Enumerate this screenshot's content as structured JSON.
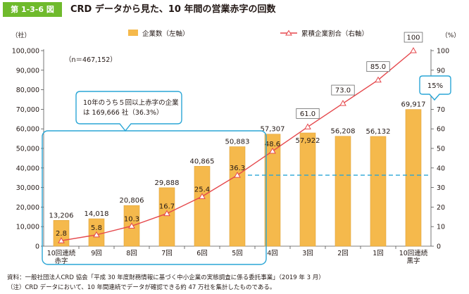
{
  "header": {
    "figure_number": "第 1-3-6 図",
    "title": "CRD データから見た、10 年間の営業赤字の回数"
  },
  "chart_data": {
    "type": "bar",
    "categories": [
      "10回連続\n赤字",
      "9回",
      "8回",
      "7回",
      "6回",
      "5回",
      "4回",
      "3回",
      "2回",
      "1回",
      "10回連続\n黒字"
    ],
    "series": [
      {
        "name": "企業数（左軸）",
        "type": "bar",
        "axis": "left",
        "values": [
          13206,
          14018,
          20806,
          29888,
          40865,
          50883,
          57307,
          57922,
          56208,
          56132,
          69917
        ],
        "labels": [
          "13,206",
          "14,018",
          "20,806",
          "29,888",
          "40,865",
          "50,883",
          "57,307",
          "57,922",
          "56,208",
          "56,132",
          "69,917"
        ],
        "color": "#f5b94c"
      },
      {
        "name": "累積企業割合（右軸）",
        "type": "line",
        "axis": "right",
        "values": [
          2.8,
          5.8,
          10.3,
          16.7,
          25.4,
          36.3,
          48.6,
          61.0,
          73.0,
          85.0,
          100
        ],
        "labels": [
          "2.8",
          "5.8",
          "10.3",
          "16.7",
          "25.4",
          "36.3",
          "48.6",
          "61.0",
          "73.0",
          "85.0",
          "100"
        ],
        "color": "#e5474b"
      }
    ],
    "left_axis": {
      "unit": "（社）",
      "ylim": [
        0,
        100000
      ],
      "ticks": [
        "0",
        "10,000",
        "20,000",
        "30,000",
        "40,000",
        "50,000",
        "60,000",
        "70,000",
        "80,000",
        "90,000",
        "100,000"
      ]
    },
    "right_axis": {
      "unit": "（%）",
      "ylim": [
        0,
        100
      ],
      "ticks": [
        "0",
        "10",
        "20",
        "30",
        "40",
        "50",
        "60",
        "70",
        "80",
        "90",
        "100"
      ]
    },
    "n_note": "（n＝467,152）",
    "callouts": {
      "loss": "10年のうち５回以上赤字の企業\nは 169,666 社（36.3%）",
      "profit": "15%"
    },
    "reference_line_value": 36.3,
    "accent_color": "#2aa6d6"
  },
  "footer": {
    "source": "資料：一般社団法人CRD 協会「平成 30 年度財務情報に基づく中小企業の実態調査に係る委託事業」（2019 年 3 月）",
    "note": "（注）CRD データにおいて、10 年間連続でデータが確認できる約 47 万社を集計したものである。"
  }
}
